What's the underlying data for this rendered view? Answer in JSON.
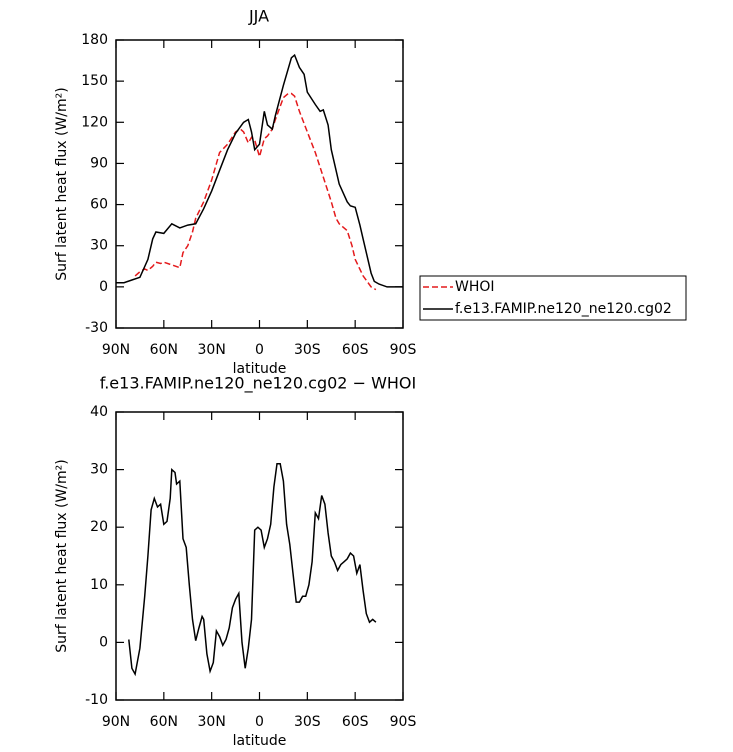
{
  "chart_data": [
    {
      "type": "line",
      "title": "JJA",
      "x_label": "latitude",
      "y_label": "Surf latent heat flux (W/m²)",
      "xlim": [
        90,
        -90
      ],
      "xticks": [
        {
          "value": 90,
          "label": "90N"
        },
        {
          "value": 60,
          "label": "60N"
        },
        {
          "value": 30,
          "label": "30N"
        },
        0,
        {
          "value": -30,
          "label": "30S"
        },
        {
          "value": -60,
          "label": "60S"
        },
        {
          "value": -90,
          "label": "90S"
        }
      ],
      "ylim": [
        -30,
        180
      ],
      "yticks": [
        -30,
        0,
        30,
        60,
        90,
        120,
        150,
        180
      ],
      "legend": "right",
      "series": [
        {
          "name": "WHOI",
          "color": "#e41a1c",
          "dashed": true,
          "x": [
            78,
            75,
            72,
            70,
            67,
            65,
            62,
            60,
            55,
            50,
            48,
            45,
            42,
            40,
            35,
            30,
            25,
            20,
            15,
            12,
            10,
            7,
            5,
            3,
            0,
            -3,
            -5,
            -8,
            -10,
            -15,
            -18,
            -20,
            -22,
            -25,
            -30,
            -35,
            -40,
            -45,
            -48,
            -50,
            -55,
            -58,
            -60,
            -65,
            -70,
            -73
          ],
          "values": [
            8,
            11,
            13,
            12,
            15,
            18,
            17,
            18,
            16,
            14,
            25,
            30,
            40,
            50,
            62,
            78,
            98,
            104,
            113,
            115,
            113,
            105,
            109,
            107,
            95,
            108,
            110,
            115,
            122,
            138,
            141,
            141,
            139,
            128,
            113,
            98,
            80,
            62,
            50,
            46,
            41,
            30,
            20,
            8,
            0,
            -2
          ]
        },
        {
          "name": "f.e13.FAMIP.ne120_ne120.cg02",
          "color": "#000000",
          "dashed": false,
          "x": [
            90,
            85,
            80,
            75,
            70,
            67,
            65,
            60,
            55,
            50,
            45,
            40,
            35,
            30,
            25,
            20,
            15,
            10,
            7,
            5,
            3,
            0,
            -3,
            -5,
            -8,
            -10,
            -15,
            -20,
            -22,
            -25,
            -28,
            -30,
            -35,
            -38,
            -40,
            -43,
            -45,
            -50,
            -55,
            -57,
            -60,
            -63,
            -65,
            -70,
            -72,
            -75,
            -80,
            -85,
            -90
          ],
          "values": [
            3,
            3,
            5,
            7,
            20,
            35,
            40,
            39,
            46,
            43,
            45,
            46,
            57,
            70,
            85,
            100,
            112,
            120,
            122,
            113,
            100,
            104,
            128,
            118,
            115,
            125,
            147,
            167,
            169,
            160,
            155,
            142,
            133,
            128,
            129,
            118,
            100,
            75,
            62,
            59,
            58,
            45,
            35,
            10,
            4,
            2,
            0,
            0,
            0
          ]
        }
      ]
    },
    {
      "type": "line",
      "title": "f.e13.FAMIP.ne120_ne120.cg02 − WHOI",
      "x_label": "latitude",
      "y_label": "Surf latent heat flux (W/m²)",
      "xlim": [
        90,
        -90
      ],
      "xticks": [
        {
          "value": 90,
          "label": "90N"
        },
        {
          "value": 60,
          "label": "60N"
        },
        {
          "value": 30,
          "label": "30N"
        },
        0,
        {
          "value": -30,
          "label": "30S"
        },
        {
          "value": -60,
          "label": "60S"
        },
        {
          "value": -90,
          "label": "90S"
        }
      ],
      "ylim": [
        -10,
        40
      ],
      "yticks": [
        -10,
        0,
        10,
        20,
        30,
        40
      ],
      "color": "#000000",
      "x": [
        82,
        80,
        78,
        75,
        72,
        70,
        68,
        66,
        64,
        62,
        60,
        58,
        56,
        55,
        53,
        52,
        50,
        48,
        46,
        44,
        42,
        40,
        38,
        36,
        35,
        33,
        31,
        29,
        27,
        25,
        23,
        21,
        19,
        17,
        15,
        13,
        11,
        9,
        7,
        5,
        3,
        1,
        -1,
        -3,
        -5,
        -7,
        -9,
        -11,
        -13,
        -15,
        -17,
        -19,
        -21,
        -23,
        -25,
        -27,
        -29,
        -31,
        -33,
        -35,
        -37,
        -39,
        -41,
        -43,
        -45,
        -47,
        -49,
        -51,
        -53,
        -55,
        -57,
        -59,
        -61,
        -63,
        -65,
        -67,
        -69,
        -71,
        -73
      ],
      "values": [
        0.5,
        -4.5,
        -5.5,
        -1,
        8,
        15,
        23,
        25,
        23.5,
        24,
        20.5,
        21,
        25,
        30,
        29.5,
        27.5,
        28,
        18,
        16.5,
        10,
        4,
        0.3,
        2.5,
        4.5,
        4,
        -2,
        -5,
        -3.5,
        2,
        1,
        -0.5,
        0.5,
        2.5,
        6,
        7.5,
        8.5,
        0,
        -4.5,
        -1,
        4,
        19.5,
        20,
        19.5,
        16.5,
        18,
        20.5,
        27,
        31,
        31,
        28,
        20.5,
        17,
        12,
        7,
        7,
        8,
        8,
        10,
        14,
        22.5,
        21.5,
        25.5,
        24,
        19,
        15,
        14,
        12.5,
        13.5,
        14,
        14.5,
        15.5,
        15,
        12,
        13.5,
        9,
        5,
        3.5,
        4,
        3.5
      ]
    }
  ]
}
